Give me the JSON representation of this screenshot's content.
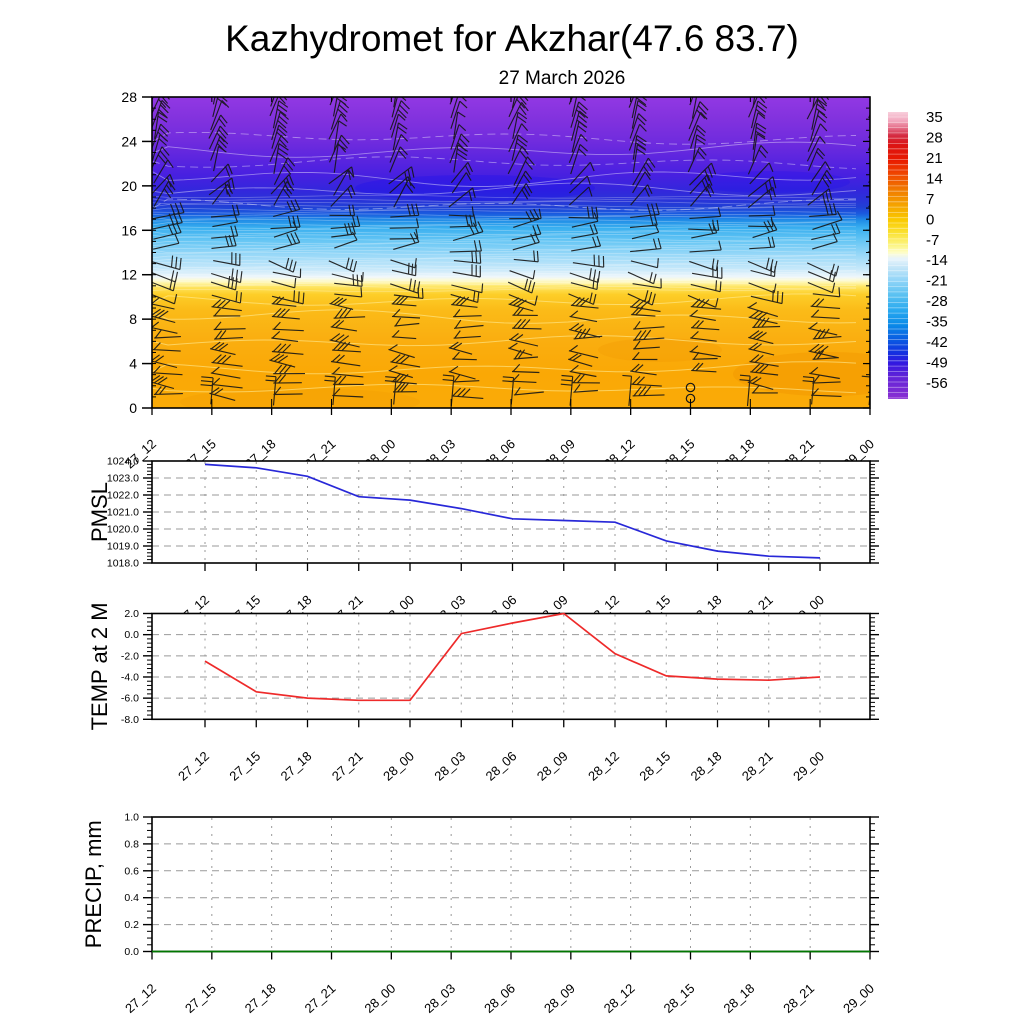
{
  "title": "Kazhydromet for Akzhar(47.6 83.7)",
  "subtitle": "27 March 2026",
  "time_labels": [
    "27_12",
    "27_15",
    "27_18",
    "27_21",
    "28_00",
    "28_03",
    "28_06",
    "28_09",
    "28_12",
    "28_15",
    "28_18",
    "28_21",
    "29_00"
  ],
  "colors": {
    "pmsl_line": "#2828d8",
    "temp_line": "#ee2a2a",
    "precip_line": "#007700",
    "barb": "#161616",
    "grid": "#999999",
    "axis": "#000000",
    "upper_contour": "rgba(255,255,255,0.42)",
    "band_stripe": "rgba(255,255,255,0.32)",
    "lower_contour": "rgba(255,236,150,0.6)"
  },
  "top_panel": {
    "y_tick_labels": [
      "0",
      "4",
      "8",
      "12",
      "16",
      "20",
      "24",
      "28"
    ],
    "y_tick_values": [
      0,
      4,
      8,
      12,
      16,
      20,
      24,
      28
    ],
    "ylim": [
      0,
      28
    ],
    "gradient_stops": [
      [
        0,
        "#9238E3"
      ],
      [
        7,
        "#8232DE"
      ],
      [
        14,
        "#712CDE"
      ],
      [
        20,
        "#5B25DF"
      ],
      [
        25,
        "#4820E0"
      ],
      [
        30,
        "#3326DC"
      ],
      [
        33,
        "#2A32D8"
      ],
      [
        35.5,
        "#2041D6"
      ],
      [
        37.5,
        "#1A5ADF"
      ],
      [
        39.5,
        "#1F8AE6"
      ],
      [
        42,
        "#38AEEF"
      ],
      [
        46,
        "#64C5F4"
      ],
      [
        51,
        "#9BD9F8"
      ],
      [
        55.5,
        "#C9E9FA"
      ],
      [
        57.8,
        "#EDF6FB"
      ],
      [
        58.8,
        "#FBFADA"
      ],
      [
        59.8,
        "#FFF5A8"
      ],
      [
        61,
        "#FEE562"
      ],
      [
        63.5,
        "#FDCE28"
      ],
      [
        68.5,
        "#FBBB18"
      ],
      [
        78,
        "#FAAE10"
      ],
      [
        89,
        "#FAA805"
      ],
      [
        100,
        "#FAAB08"
      ]
    ],
    "barb_grid": {
      "columns": 13,
      "rows": 28
    },
    "calm_symbols": {
      "time": "28_15",
      "count": 2
    }
  },
  "colorbar": {
    "tick_labels": [
      "35",
      "28",
      "21",
      "14",
      "7",
      "0",
      "-7",
      "-14",
      "-21",
      "-28",
      "-35",
      "-42",
      "-49",
      "-56"
    ],
    "stops": [
      [
        0,
        "#F8CFDC"
      ],
      [
        3,
        "#F2A8BE"
      ],
      [
        5.6,
        "#E46C86"
      ],
      [
        8.3,
        "#D42A40"
      ],
      [
        11.5,
        "#DC1414"
      ],
      [
        16.7,
        "#E81A00"
      ],
      [
        22,
        "#F04A00"
      ],
      [
        27,
        "#F07A00"
      ],
      [
        32.4,
        "#F5A300"
      ],
      [
        37.6,
        "#FACA00"
      ],
      [
        41.8,
        "#FAE030"
      ],
      [
        46.3,
        "#FCF480"
      ],
      [
        49,
        "#FEFDC8"
      ],
      [
        51,
        "#E9F4FB"
      ],
      [
        54.4,
        "#C2E5F8"
      ],
      [
        58.5,
        "#92D5F8"
      ],
      [
        63.8,
        "#5AC1F1"
      ],
      [
        69,
        "#2AAAF0"
      ],
      [
        74.2,
        "#0A8AE8"
      ],
      [
        79.4,
        "#0A5AE2"
      ],
      [
        83.6,
        "#1232E0"
      ],
      [
        87.5,
        "#3218E0"
      ],
      [
        92,
        "#6022D8"
      ],
      [
        100,
        "#8A30D2"
      ]
    ]
  },
  "pmsl": {
    "ylabel": "PMSL",
    "y_tick_labels": [
      "1024.0",
      "1023.0",
      "1022.0",
      "1021.0",
      "1020.0",
      "1019.0",
      "1018.0"
    ],
    "y_tick_values": [
      1024,
      1023,
      1022,
      1021,
      1020,
      1019,
      1018
    ],
    "ylim": [
      1018,
      1024
    ]
  },
  "temp": {
    "ylabel": "TEMP at 2 M",
    "y_tick_labels": [
      "2.0",
      "0.0",
      "-2.0",
      "-4.0",
      "-6.0",
      "-8.0"
    ],
    "y_tick_values": [
      2,
      0,
      -2,
      -4,
      -6,
      -8
    ],
    "ylim": [
      -8,
      2
    ]
  },
  "precip": {
    "ylabel": "PRECIP, mm",
    "y_tick_labels": [
      "1.0",
      "0.8",
      "0.6",
      "0.4",
      "0.2",
      "0.0"
    ],
    "y_tick_values": [
      1,
      0.8,
      0.6,
      0.4,
      0.2,
      0
    ],
    "ylim": [
      0,
      1
    ]
  },
  "chart_data": [
    {
      "type": "heatmap",
      "panel": "temperature-height-time-section",
      "x": [
        "27_12",
        "27_15",
        "27_18",
        "27_21",
        "28_00",
        "28_03",
        "28_06",
        "28_09",
        "28_12",
        "28_15",
        "28_18",
        "28_21",
        "29_00"
      ],
      "ylim": [
        0,
        28
      ],
      "y_ticks": [
        0,
        4,
        8,
        12,
        16,
        20,
        24,
        28
      ],
      "colorbar_ticks": [
        35,
        28,
        21,
        14,
        7,
        0,
        -7,
        -14,
        -21,
        -28,
        -35,
        -42,
        -49,
        -56
      ],
      "legend_position": "right",
      "note": "Filled temperature contours (warm orange near surface up to ~level 11, pale yellow/white transition ~11.5, light blue to deep blue ~12-20, violet/purple above 21) with black wind barbs at every level/time and two calm circles near the surface at 28_15."
    },
    {
      "type": "line",
      "panel": "PMSL",
      "ylabel": "PMSL",
      "x": [
        "27_12",
        "27_15",
        "27_18",
        "27_21",
        "28_00",
        "28_03",
        "28_06",
        "28_09",
        "28_12",
        "28_15",
        "28_18",
        "28_21",
        "29_00"
      ],
      "values": [
        1023.8,
        1023.6,
        1023.1,
        1021.9,
        1021.7,
        1021.2,
        1020.6,
        1020.5,
        1020.4,
        1019.3,
        1018.7,
        1018.4,
        1018.3
      ],
      "ylim": [
        1018,
        1024
      ],
      "grid": true,
      "line_color": "#2828d8"
    },
    {
      "type": "line",
      "panel": "TEMP at 2 M",
      "ylabel": "TEMP at 2 M",
      "x": [
        "27_12",
        "27_15",
        "27_18",
        "27_21",
        "28_00",
        "28_03",
        "28_06",
        "28_09",
        "28_12",
        "28_15",
        "28_18",
        "28_21",
        "29_00"
      ],
      "values": [
        -2.5,
        -5.4,
        -6.0,
        -6.2,
        -6.2,
        0.1,
        1.1,
        2.0,
        -1.8,
        -3.9,
        -4.2,
        -4.3,
        -4.0
      ],
      "ylim": [
        -8,
        2
      ],
      "grid": true,
      "line_color": "#ee2a2a"
    },
    {
      "type": "line",
      "panel": "PRECIP, mm",
      "ylabel": "PRECIP, mm",
      "x": [
        "27_12",
        "27_15",
        "27_18",
        "27_21",
        "28_00",
        "28_03",
        "28_06",
        "28_09",
        "28_12",
        "28_15",
        "28_18",
        "28_21",
        "29_00"
      ],
      "values": [
        0,
        0,
        0,
        0,
        0,
        0,
        0,
        0,
        0,
        0,
        0,
        0,
        0
      ],
      "ylim": [
        0,
        1
      ],
      "grid": true,
      "line_color": "#007700"
    }
  ]
}
